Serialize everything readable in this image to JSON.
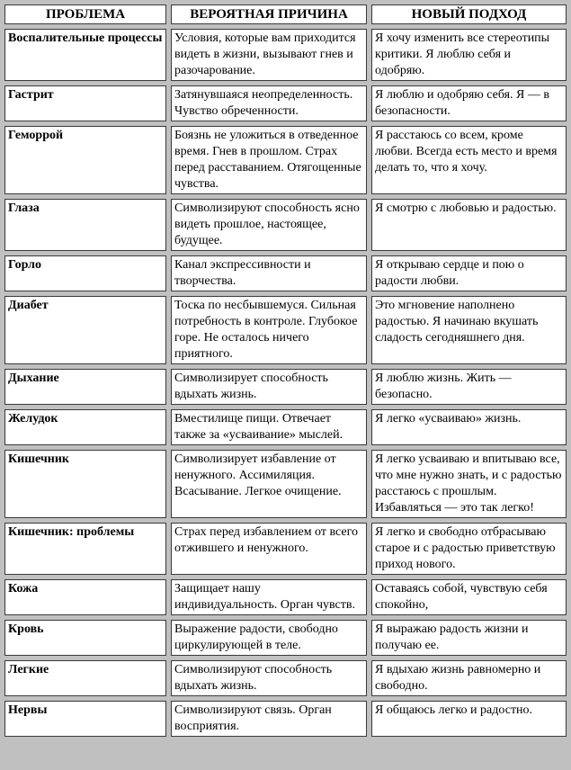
{
  "page": {
    "background_color": "#c0c0c0",
    "cell_background_color": "#ffffff",
    "border_color": "#3a3a3a",
    "text_color": "#000000"
  },
  "table": {
    "headers": [
      "ПРОБЛЕМА",
      "ВЕРОЯТНАЯ ПРИЧИНА",
      "НОВЫЙ ПОДХОД"
    ],
    "rows": [
      {
        "problem": "Воспалительные процессы",
        "cause": "Условия, которые вам приходится видеть в жизни, вызывают гнев и разочарование.",
        "approach": "Я хочу изменить все стереотипы критики. Я люблю себя и одобряю."
      },
      {
        "problem": "Гастрит",
        "cause": "Затянувшаяся неопределенность. Чувство обреченности.",
        "approach": "Я люблю и одобряю себя. Я — в безопасности."
      },
      {
        "problem": "Геморрой",
        "cause": "Боязнь не уложиться в отведенное время. Гнев в прошлом. Страх перед расставанием. Отягощенные чувства.",
        "approach": "Я расстаюсь со всем, кроме любви. Всегда есть место и время делать то, что я хочу."
      },
      {
        "problem": "Глаза",
        "cause": "Символизируют способность ясно видеть прошлое, настоящее, будущее.",
        "approach": "Я смотрю с любовью и радостью."
      },
      {
        "problem": "Горло",
        "cause": "Канал экспрессивности и творчества.",
        "approach": "Я открываю сердце и пою о радости любви."
      },
      {
        "problem": "Диабет",
        "cause": "Тоска по несбывшемуся. Сильная потребность в контроле. Глубокое горе. Не осталось ничего приятного.",
        "approach": "Это мгновение наполнено радостью. Я начинаю вкушать сладость сегодняшнего дня."
      },
      {
        "problem": "Дыхание",
        "cause": "Символизирует способность вдыхать жизнь.",
        "approach": "Я люблю жизнь. Жить — безопасно."
      },
      {
        "problem": "Желудок",
        "cause": "Вместилище пищи. Отвечает также за «усваивание» мыслей.",
        "approach": "Я легко «усваиваю» жизнь."
      },
      {
        "problem": "Кишечник",
        "cause": "Символизирует избавление от ненужного. Ассимиляция. Всасывание. Легкое очищение.",
        "approach": "Я легко усваиваю и впитываю все, что мне нужно знать, и с радостью расстаюсь с прошлым. Избавляться — это так легко!"
      },
      {
        "problem": "Кишечник: проблемы",
        "cause": "Страх перед избавлением от всего отжившего и ненужного.",
        "approach": "Я легко и свободно отбрасываю старое и с радостью приветствую приход нового."
      },
      {
        "problem": "Кожа",
        "cause": "Защищает нашу индивидуальность. Орган чувств.",
        "approach": "Оставаясь собой, чувствую себя спокойно,"
      },
      {
        "problem": "Кровь",
        "cause": "Выражение радости, свободно циркулирующей в теле.",
        "approach": "Я выражаю радость жизни и получаю ее."
      },
      {
        "problem": "Легкие",
        "cause": "Символизируют способность вдыхать жизнь.",
        "approach": "Я вдыхаю жизнь равномерно и свободно."
      },
      {
        "problem": "Нервы",
        "cause": "Символизируют связь. Орган восприятия.",
        "approach": "Я общаюсь легко и радостно."
      }
    ]
  }
}
